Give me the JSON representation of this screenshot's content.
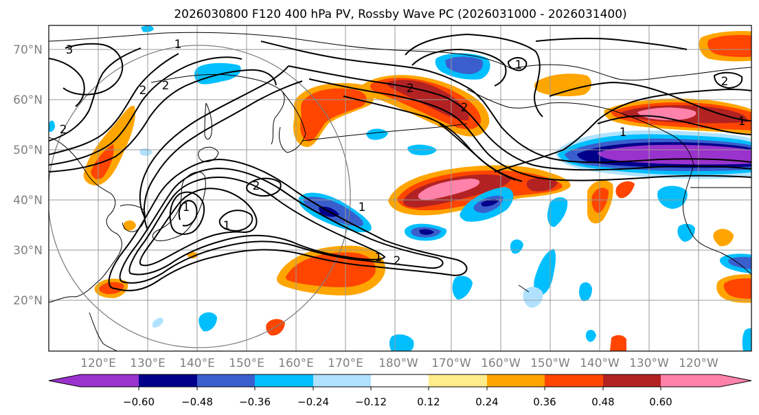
{
  "title": "2026030800 F120 400 hPa PV, Rossby Wave PC (2026031000 - 2026031400)",
  "map": {
    "lon_labels": [
      "120°E",
      "130°E",
      "140°E",
      "150°E",
      "160°E",
      "170°E",
      "180°W",
      "170°W",
      "160°W",
      "150°W",
      "140°W",
      "130°W",
      "120°W"
    ],
    "lat_labels": [
      "20°N",
      "30°N",
      "40°N",
      "50°N",
      "60°N",
      "70°N"
    ],
    "contour_labels": [
      "3",
      "2",
      "2",
      "2",
      "1",
      "1",
      "1",
      "1",
      "2",
      "1",
      "2",
      "2",
      "1",
      "2",
      "1",
      "1",
      "2"
    ]
  },
  "colorbar": {
    "colors": [
      "#9a32cd",
      "#00008b",
      "#3a5fcd",
      "#00bfff",
      "#b0e2ff",
      "#ffffff",
      "#ffec8b",
      "#ffa500",
      "#ff4500",
      "#b22222",
      "#ff82ab"
    ],
    "extend_low_color": "#9a32cd",
    "extend_high_color": "#ff82ab",
    "tick_labels": [
      "−0.60",
      "−0.48",
      "−0.36",
      "−0.24",
      "−0.12",
      "0.12",
      "0.24",
      "0.36",
      "0.48",
      "0.60"
    ]
  }
}
